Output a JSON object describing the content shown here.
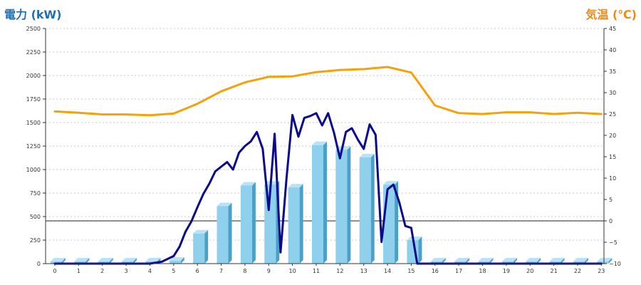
{
  "chart_data": {
    "type": "bar",
    "title": "",
    "y_left_label": "電力 (kW)",
    "y_right_label": "気温 (℃)",
    "xlabel": "",
    "categories": [
      "0",
      "1",
      "2",
      "3",
      "4",
      "5",
      "6",
      "7",
      "8",
      "9",
      "10",
      "11",
      "12",
      "13",
      "14",
      "15",
      "16",
      "17",
      "18",
      "19",
      "20",
      "21",
      "22",
      "23"
    ],
    "y_left_ticks": [
      "0",
      "250",
      "500",
      "750",
      "1000",
      "1250",
      "1500",
      "1750",
      "2000",
      "2250",
      "2500"
    ],
    "y_right_ticks": [
      "−10",
      "−5",
      "0",
      "5",
      "10",
      "15",
      "20",
      "25",
      "30",
      "35",
      "40",
      "45"
    ],
    "y_left_range": [
      0,
      2500
    ],
    "y_right_range": [
      -10,
      45
    ],
    "grid": true,
    "series": [
      {
        "kind": "bar",
        "axis": "left",
        "values": [
          0,
          0,
          0,
          0,
          0,
          30,
          320,
          610,
          830,
          840,
          810,
          1260,
          1210,
          1130,
          840,
          250,
          0,
          0,
          0,
          0,
          0,
          0,
          0,
          0
        ]
      },
      {
        "kind": "line",
        "axis": "left",
        "x": [
          0,
          1,
          2,
          3,
          4,
          4.5,
          5,
          5.25,
          5.5,
          5.75,
          6,
          6.25,
          6.5,
          6.75,
          7,
          7.25,
          7.5,
          7.75,
          8,
          8.25,
          8.5,
          8.75,
          9,
          9.25,
          9.5,
          9.75,
          10,
          10.25,
          10.5,
          10.75,
          11,
          11.25,
          11.5,
          11.75,
          12,
          12.25,
          12.5,
          12.75,
          13,
          13.25,
          13.5,
          13.75,
          14,
          14.25,
          14.5,
          14.75,
          15,
          15.25,
          15.5,
          16,
          17,
          18,
          19,
          20,
          21,
          22,
          23
        ],
        "y": [
          0,
          0,
          0,
          0,
          0,
          20,
          80,
          180,
          340,
          450,
          600,
          740,
          850,
          980,
          1030,
          1080,
          1000,
          1180,
          1250,
          1300,
          1400,
          1220,
          570,
          1380,
          120,
          910,
          1580,
          1350,
          1550,
          1570,
          1600,
          1470,
          1600,
          1390,
          1120,
          1400,
          1440,
          1320,
          1220,
          1480,
          1370,
          230,
          790,
          840,
          650,
          400,
          380,
          0,
          0,
          0,
          0,
          0,
          0,
          0,
          0,
          0,
          0
        ]
      },
      {
        "kind": "line",
        "axis": "right",
        "x": [
          0,
          1,
          2,
          3,
          4,
          5,
          6,
          7,
          8,
          9,
          10,
          11,
          12,
          13,
          14,
          15,
          16,
          17,
          18,
          19,
          20,
          21,
          22,
          23
        ],
        "y": [
          25.6,
          25.3,
          24.9,
          24.9,
          24.7,
          25.1,
          27.4,
          30.3,
          32.4,
          33.7,
          33.8,
          34.8,
          35.3,
          35.5,
          36.0,
          34.7,
          27.0,
          25.2,
          25.0,
          25.4,
          25.4,
          25.0,
          25.3,
          25.0
        ]
      }
    ],
    "colors": {
      "bar_front": "#8fd0ec",
      "bar_side": "#4aa0c8",
      "bar_top": "#b8e3f6",
      "power_line": "#0a0a8c",
      "temp_line": "#f5a10a",
      "left_unit": "#1f6fb8",
      "right_unit": "#e88a1e"
    }
  }
}
